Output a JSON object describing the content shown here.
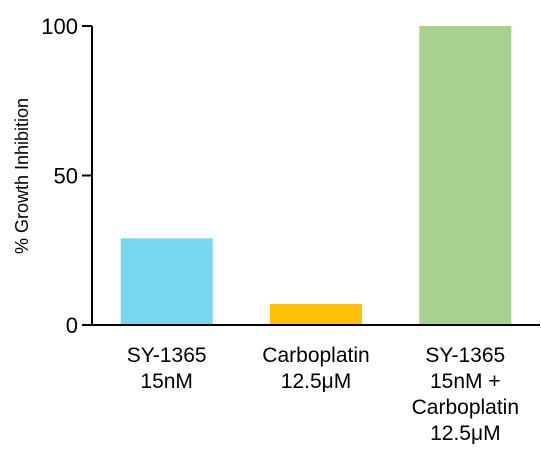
{
  "chart_data": {
    "type": "bar",
    "categories": [
      [
        "SY-1365",
        "15nM"
      ],
      [
        "Carboplatin",
        "12.5μM"
      ],
      [
        "SY-1365",
        "15nM +",
        "Carboplatin",
        "12.5μM"
      ]
    ],
    "values": [
      29,
      7,
      100
    ],
    "bar_colors": [
      "#76d7f0",
      "#fec200",
      "#a9d18e"
    ],
    "title": "",
    "xlabel": "",
    "ylabel": "% Growth Inhibition",
    "ylim": [
      0,
      100
    ],
    "yticks": [
      0,
      50,
      100
    ],
    "ytick_labels": [
      "0",
      "50",
      "100"
    ],
    "grid": false,
    "legend": false
  }
}
